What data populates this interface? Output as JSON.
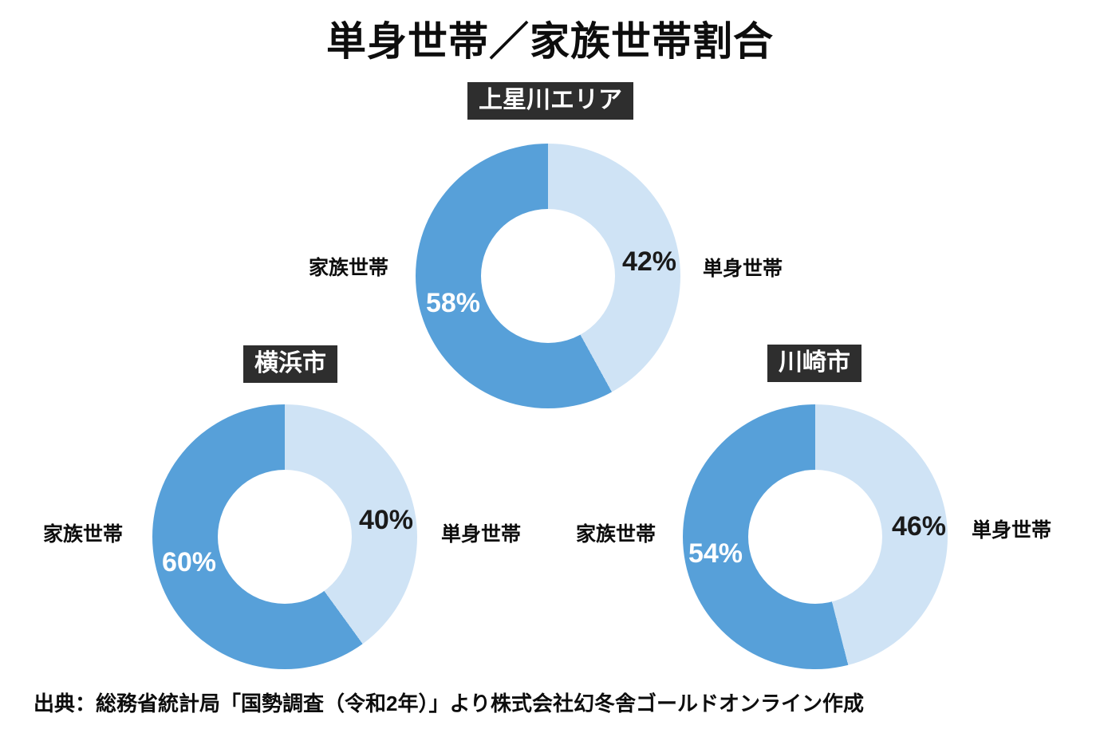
{
  "title": "単身世帯／家族世帯割合",
  "source": "出典：総務省統計局「国勢調査（令和2年）」より株式会社幻冬舎ゴールドオンライン作成",
  "colors": {
    "family_segment": "#57a0d9",
    "single_segment": "#cfe3f5",
    "badge_background": "#2e2e2e",
    "badge_text": "#ffffff",
    "heading_text": "#0d0d0d",
    "family_pct_text": "#ffffff",
    "single_pct_text": "#1a1a1a",
    "background": "#ffffff"
  },
  "chart_data": {
    "type": "pie",
    "variant": "donut",
    "start_angle": "top",
    "direction": "clockwise",
    "unit": "%",
    "title": "単身世帯／家族世帯割合",
    "legend_position": "sides",
    "charts": [
      {
        "area": "上星川エリア",
        "segments": [
          {
            "label": "単身世帯",
            "value": 42,
            "display": "42%",
            "color": "#cfe3f5"
          },
          {
            "label": "家族世帯",
            "value": 58,
            "display": "58%",
            "color": "#57a0d9"
          }
        ]
      },
      {
        "area": "横浜市",
        "segments": [
          {
            "label": "単身世帯",
            "value": 40,
            "display": "40%",
            "color": "#cfe3f5"
          },
          {
            "label": "家族世帯",
            "value": 60,
            "display": "60%",
            "color": "#57a0d9"
          }
        ]
      },
      {
        "area": "川崎市",
        "segments": [
          {
            "label": "単身世帯",
            "value": 46,
            "display": "46%",
            "color": "#cfe3f5"
          },
          {
            "label": "家族世帯",
            "value": 54,
            "display": "54%",
            "color": "#57a0d9"
          }
        ]
      }
    ]
  }
}
